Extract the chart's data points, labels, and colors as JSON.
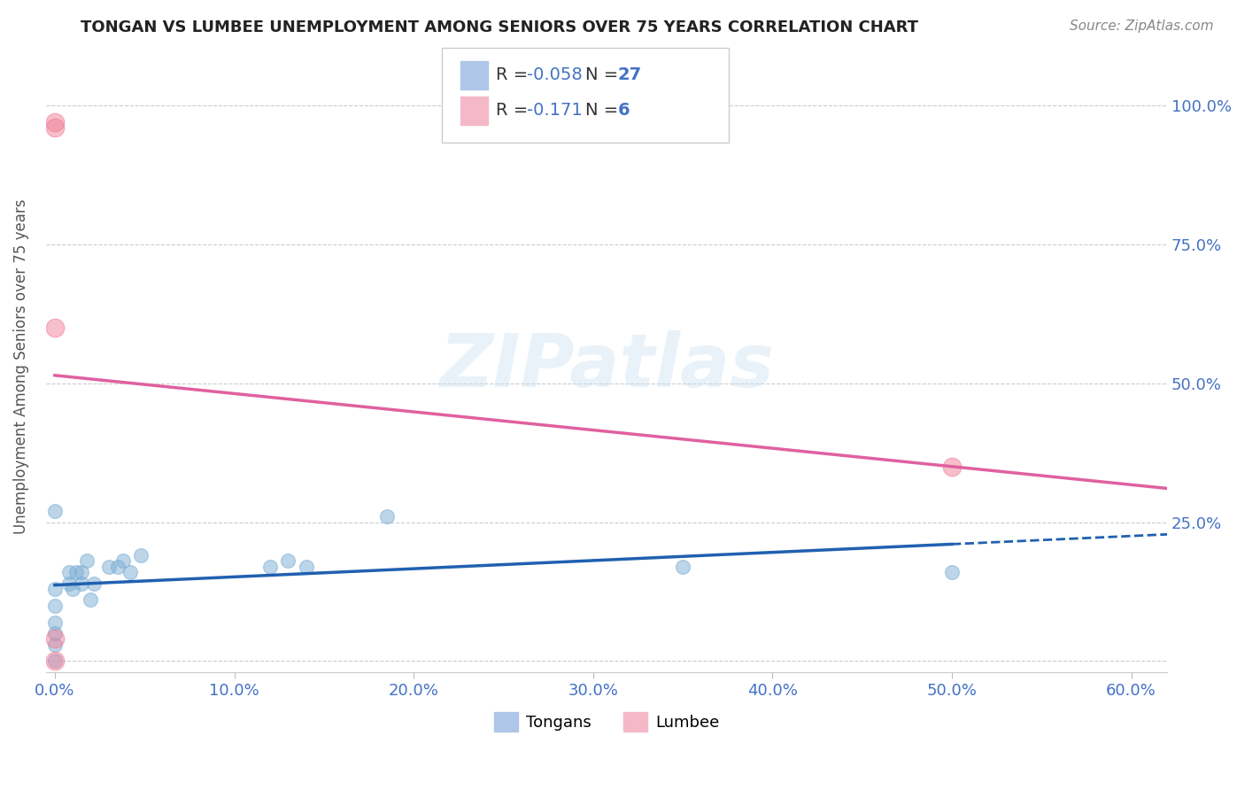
{
  "title": "TONGAN VS LUMBEE UNEMPLOYMENT AMONG SENIORS OVER 75 YEARS CORRELATION CHART",
  "source": "Source: ZipAtlas.com",
  "ylabel": "Unemployment Among Seniors over 75 years",
  "axis_color": "#4472c4",
  "xlim": [
    -0.005,
    0.62
  ],
  "ylim": [
    -0.02,
    1.08
  ],
  "xticks": [
    0.0,
    0.1,
    0.2,
    0.3,
    0.4,
    0.5,
    0.6
  ],
  "xticklabels": [
    "0.0%",
    "10.0%",
    "20.0%",
    "30.0%",
    "40.0%",
    "50.0%",
    "60.0%"
  ],
  "yticks": [
    0.0,
    0.25,
    0.5,
    0.75,
    1.0
  ],
  "yticklabels_right": [
    "",
    "25.0%",
    "50.0%",
    "75.0%",
    "100.0%"
  ],
  "legend_tongan_color": "#aec6e8",
  "legend_lumbee_color": "#f4b8c8",
  "tongan_color": "#7aadd4",
  "lumbee_color": "#f08098",
  "tongan_line_color": "#2060b0",
  "lumbee_line_color": "#e060a0",
  "R_tongan": -0.058,
  "N_tongan": 27,
  "R_lumbee": -0.171,
  "N_lumbee": 6,
  "tongan_x": [
    0.0,
    0.0,
    0.0,
    0.0,
    0.0,
    0.0,
    0.0,
    0.008,
    0.008,
    0.01,
    0.012,
    0.015,
    0.015,
    0.018,
    0.02,
    0.022,
    0.03,
    0.035,
    0.038,
    0.042,
    0.048,
    0.12,
    0.13,
    0.14,
    0.185,
    0.35,
    0.5
  ],
  "tongan_y": [
    0.0,
    0.03,
    0.05,
    0.07,
    0.1,
    0.13,
    0.27,
    0.14,
    0.16,
    0.13,
    0.16,
    0.14,
    0.16,
    0.18,
    0.11,
    0.14,
    0.17,
    0.17,
    0.18,
    0.16,
    0.19,
    0.17,
    0.18,
    0.17,
    0.26,
    0.17,
    0.16
  ],
  "lumbee_x": [
    0.0,
    0.0,
    0.0,
    0.0,
    0.0,
    0.5
  ],
  "lumbee_y": [
    0.97,
    0.96,
    0.6,
    0.04,
    0.0,
    0.35
  ],
  "watermark": "ZIPatlas",
  "marker_size_tongan": 130,
  "marker_size_lumbee": 220
}
